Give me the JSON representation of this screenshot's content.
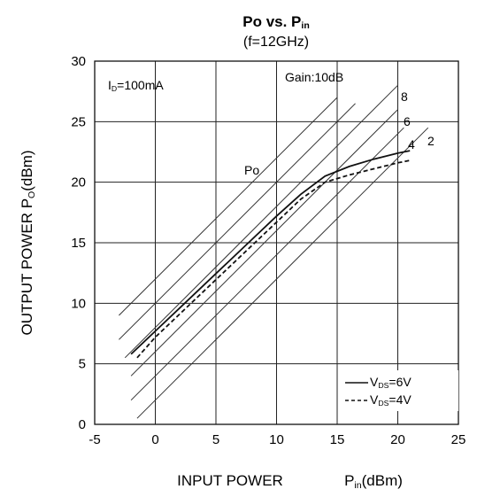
{
  "chart_data": {
    "type": "line",
    "title": {
      "main": "Po vs. P",
      "main_sub": "in"
    },
    "subtitle": "(f=12GHz)",
    "xlabel": {
      "main": "INPUT POWER",
      "unit_pre": "P",
      "unit_sub": "in",
      "unit_post": "(dBm)"
    },
    "ylabel": {
      "main": "OUTPUT POWER P",
      "sub": "O",
      "post": "(dBm)"
    },
    "xlim": [
      -5,
      25
    ],
    "ylim": [
      0,
      30
    ],
    "xticks": [
      "-5",
      "0",
      "5",
      "10",
      "15",
      "20",
      "25"
    ],
    "yticks": [
      "0",
      "5",
      "10",
      "15",
      "20",
      "25",
      "30"
    ],
    "grid": true,
    "annotations": {
      "bias_main": "I",
      "bias_sub": "D",
      "bias_post": "=100mA",
      "gain": "Gain:10dB",
      "po": "Po"
    },
    "gain_lines": [
      {
        "gain": 2,
        "label": "2",
        "x_range": [
          -1.5,
          22.5
        ]
      },
      {
        "gain": 4,
        "label": "4",
        "x_range": [
          -2.0,
          20.5
        ]
      },
      {
        "gain": 6,
        "label": "6",
        "x_range": [
          -2.0,
          20.0
        ]
      },
      {
        "gain": 8,
        "label": "8",
        "x_range": [
          -2.5,
          20.0
        ]
      },
      {
        "gain": 10,
        "label": "",
        "x_range": [
          -3.0,
          16.5
        ]
      },
      {
        "gain": 12,
        "label": "",
        "x_range": [
          -3.0,
          15.0
        ]
      }
    ],
    "series": [
      {
        "name": "V",
        "name_sub": "DS",
        "name_post": "=6V",
        "style": "solid",
        "x": [
          -2,
          0,
          2,
          4,
          6,
          8,
          10,
          12,
          14,
          16,
          18,
          20,
          21
        ],
        "y": [
          5.8,
          7.7,
          9.6,
          11.5,
          13.4,
          15.3,
          17.2,
          19.0,
          20.5,
          21.3,
          21.9,
          22.4,
          22.6
        ]
      },
      {
        "name": "V",
        "name_sub": "DS",
        "name_post": "=4V",
        "style": "dashed",
        "x": [
          -1.5,
          0,
          2,
          4,
          6,
          8,
          10,
          12,
          14,
          16,
          18,
          20,
          21
        ],
        "y": [
          5.5,
          7.2,
          9.1,
          11.0,
          12.9,
          14.8,
          16.7,
          18.6,
          20.0,
          20.6,
          21.1,
          21.6,
          21.8
        ]
      }
    ]
  }
}
